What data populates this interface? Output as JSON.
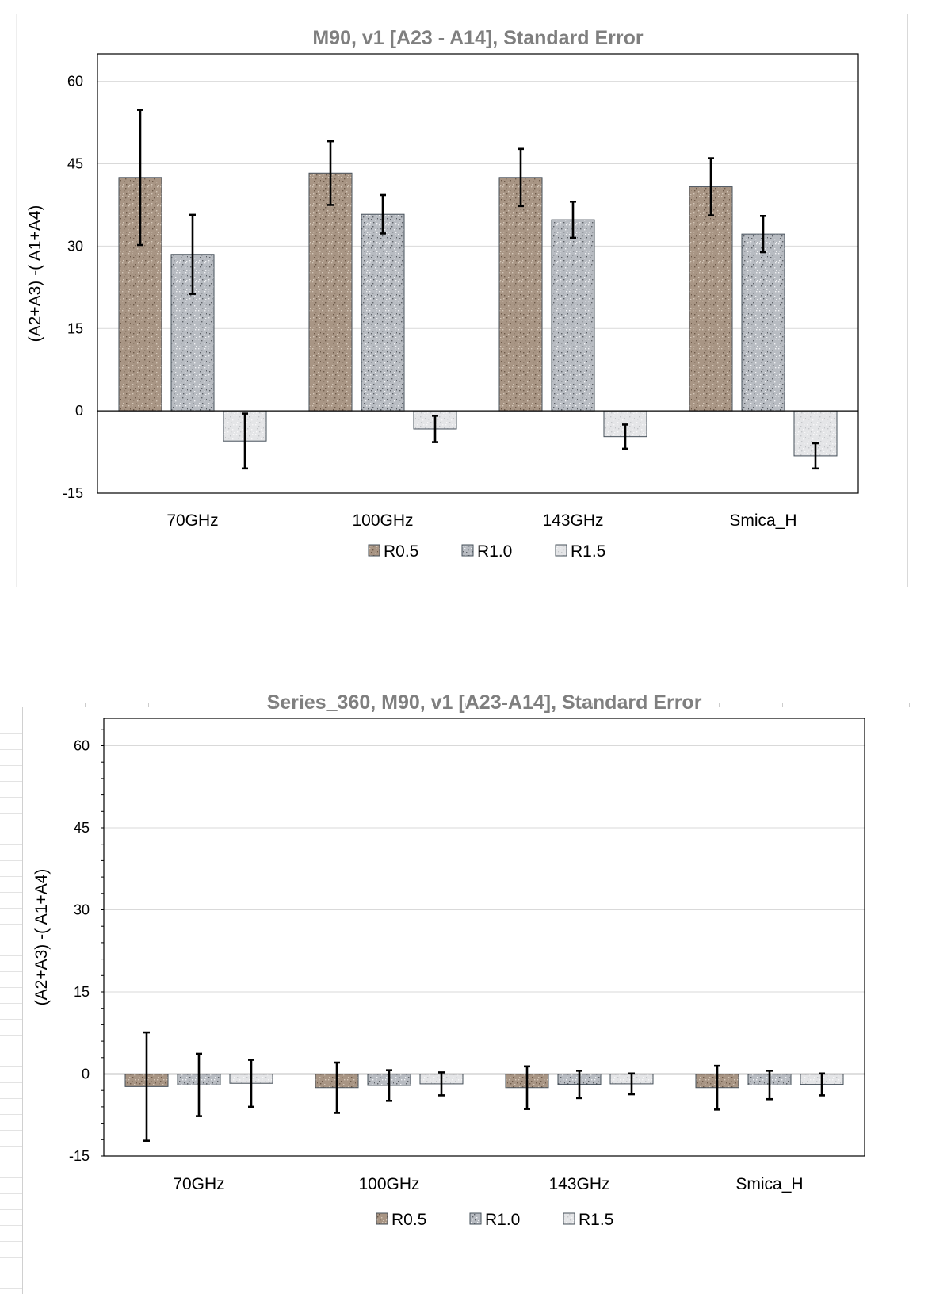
{
  "colors": {
    "r05": "#a89584",
    "r10": "#b8bcc2",
    "r15": "#e4e5e7",
    "gridline": "#d9d9d9",
    "title": "#7f7f7f"
  },
  "chart_data": [
    {
      "type": "bar",
      "title": "M90,  v1  [A23 - A14],  Standard Error",
      "xlabel": "",
      "ylabel": "(A2+A3) -( A1+A4)",
      "ylim": [
        -15,
        65
      ],
      "yticks": [
        60,
        45,
        30,
        15,
        0,
        -15
      ],
      "grid": true,
      "legend": "bottom",
      "categories": [
        "70GHz",
        "100GHz",
        "143GHz",
        "Smica_H"
      ],
      "series": [
        {
          "name": "R0.5",
          "values": [
            42.5,
            43.3,
            42.5,
            40.8
          ],
          "errors": [
            12.3,
            5.8,
            5.2,
            5.2
          ]
        },
        {
          "name": "R1.0",
          "values": [
            28.5,
            35.8,
            34.8,
            32.2
          ],
          "errors": [
            7.2,
            3.5,
            3.3,
            3.3
          ]
        },
        {
          "name": "R1.5",
          "values": [
            -5.5,
            -3.3,
            -4.7,
            -8.2
          ],
          "errors": [
            5.0,
            2.4,
            2.2,
            2.3
          ]
        }
      ]
    },
    {
      "type": "bar",
      "title": "Series_360, M90, v1  [A23-A14],  Standard Error",
      "xlabel": "",
      "ylabel": "(A2+A3) -( A1+A4)",
      "ylim": [
        -15,
        65
      ],
      "yticks": [
        60,
        45,
        30,
        15,
        0,
        -15
      ],
      "grid": true,
      "legend": "bottom",
      "categories": [
        "70GHz",
        "100GHz",
        "143GHz",
        "Smica_H"
      ],
      "series": [
        {
          "name": "R0.5",
          "values": [
            -2.3,
            -2.5,
            -2.5,
            -2.5
          ],
          "errors": [
            9.9,
            4.6,
            3.9,
            4.0
          ]
        },
        {
          "name": "R1.0",
          "values": [
            -2.0,
            -2.1,
            -1.9,
            -2.0
          ],
          "errors": [
            5.7,
            2.8,
            2.5,
            2.6
          ]
        },
        {
          "name": "R1.5",
          "values": [
            -1.7,
            -1.8,
            -1.8,
            -1.9
          ],
          "errors": [
            4.3,
            2.1,
            1.9,
            2.0
          ]
        }
      ]
    }
  ]
}
